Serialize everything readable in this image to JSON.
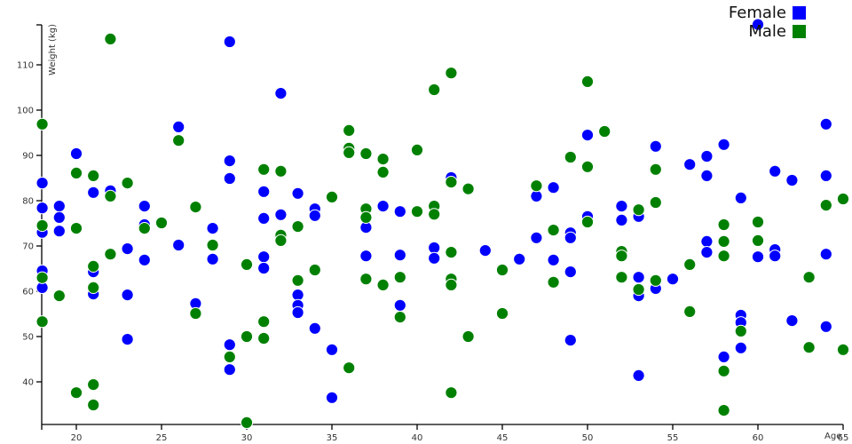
{
  "legend": {
    "items": [
      {
        "label": "Female",
        "color": "#0000ff"
      },
      {
        "label": "Male",
        "color": "#008000"
      }
    ]
  },
  "chart_data": {
    "type": "scatter",
    "title": "",
    "xlabel": "Age",
    "ylabel": "Weight (kg)",
    "xlim": [
      17.9,
      65.5
    ],
    "ylim": [
      30.5,
      118.9
    ],
    "x_ticks": [
      20,
      25,
      30,
      35,
      40,
      45,
      50,
      55,
      60,
      65
    ],
    "y_ticks": [
      40,
      50,
      60,
      70,
      80,
      90,
      100,
      110
    ],
    "grid": false,
    "legend_position": "top-right",
    "marker": {
      "radius_px": 6.6,
      "edge_color": "#ffffff"
    },
    "axis_color": "#000000",
    "series": [
      {
        "name": "Female",
        "color": "#0000ff",
        "points": [
          [
            18,
            83.9
          ],
          [
            18,
            78.4
          ],
          [
            18,
            73.0
          ],
          [
            18,
            64.5
          ],
          [
            18,
            60.8
          ],
          [
            19,
            78.8
          ],
          [
            19,
            76.3
          ],
          [
            19,
            73.3
          ],
          [
            20,
            90.4
          ],
          [
            21,
            81.8
          ],
          [
            21,
            64.3
          ],
          [
            21,
            59.4
          ],
          [
            22,
            82.2
          ],
          [
            23,
            69.4
          ],
          [
            23,
            59.2
          ],
          [
            23,
            49.4
          ],
          [
            24,
            78.8
          ],
          [
            24,
            74.7
          ],
          [
            24,
            66.9
          ],
          [
            26,
            96.3
          ],
          [
            26,
            70.2
          ],
          [
            27,
            57.3
          ],
          [
            28,
            73.9
          ],
          [
            28,
            67.1
          ],
          [
            29,
            115.1
          ],
          [
            29,
            88.8
          ],
          [
            29,
            84.9
          ],
          [
            29,
            48.2
          ],
          [
            29,
            42.7
          ],
          [
            31,
            82.0
          ],
          [
            31,
            76.1
          ],
          [
            31,
            67.6
          ],
          [
            31,
            65.1
          ],
          [
            32,
            103.7
          ],
          [
            32,
            76.9
          ],
          [
            33,
            81.6
          ],
          [
            33,
            59.2
          ],
          [
            33,
            56.9
          ],
          [
            33,
            55.3
          ],
          [
            34,
            78.2
          ],
          [
            34,
            76.7
          ],
          [
            34,
            51.8
          ],
          [
            35,
            47.1
          ],
          [
            35,
            36.5
          ],
          [
            37,
            74.1
          ],
          [
            37,
            67.8
          ],
          [
            38,
            78.8
          ],
          [
            39,
            77.6
          ],
          [
            39,
            68.0
          ],
          [
            39,
            56.9
          ],
          [
            41,
            69.6
          ],
          [
            41,
            67.3
          ],
          [
            42,
            85.1
          ],
          [
            44,
            69.0
          ],
          [
            46,
            67.1
          ],
          [
            47,
            81.0
          ],
          [
            47,
            71.8
          ],
          [
            48,
            82.9
          ],
          [
            48,
            66.9
          ],
          [
            49,
            72.9
          ],
          [
            49,
            71.8
          ],
          [
            49,
            64.3
          ],
          [
            49,
            49.2
          ],
          [
            50,
            94.5
          ],
          [
            50,
            76.5
          ],
          [
            52,
            78.8
          ],
          [
            52,
            75.7
          ],
          [
            53,
            76.5
          ],
          [
            53,
            63.1
          ],
          [
            53,
            59.0
          ],
          [
            53,
            41.4
          ],
          [
            54,
            92.0
          ],
          [
            54,
            60.6
          ],
          [
            55,
            62.7
          ],
          [
            56,
            88.0
          ],
          [
            57,
            89.8
          ],
          [
            57,
            85.5
          ],
          [
            57,
            71.0
          ],
          [
            57,
            68.6
          ],
          [
            58,
            92.4
          ],
          [
            58,
            45.5
          ],
          [
            59,
            80.6
          ],
          [
            59,
            54.7
          ],
          [
            59,
            53.1
          ],
          [
            59,
            47.5
          ],
          [
            60,
            118.9
          ],
          [
            60,
            67.6
          ],
          [
            61,
            86.5
          ],
          [
            61,
            69.2
          ],
          [
            61,
            67.8
          ],
          [
            62,
            84.5
          ],
          [
            62,
            53.5
          ],
          [
            64,
            96.9
          ],
          [
            64,
            85.5
          ],
          [
            64,
            68.2
          ],
          [
            64,
            52.2
          ]
        ]
      },
      {
        "name": "Male",
        "color": "#008000",
        "points": [
          [
            18,
            96.9
          ],
          [
            18,
            74.5
          ],
          [
            18,
            63.0
          ],
          [
            18,
            53.3
          ],
          [
            19,
            59.0
          ],
          [
            20,
            86.1
          ],
          [
            20,
            73.9
          ],
          [
            20,
            37.6
          ],
          [
            21,
            85.5
          ],
          [
            21,
            65.5
          ],
          [
            21,
            60.8
          ],
          [
            21,
            39.4
          ],
          [
            21,
            34.9
          ],
          [
            22,
            115.7
          ],
          [
            22,
            81.0
          ],
          [
            22,
            68.2
          ],
          [
            23,
            83.9
          ],
          [
            24,
            73.9
          ],
          [
            25,
            75.1
          ],
          [
            26,
            93.3
          ],
          [
            27,
            78.6
          ],
          [
            27,
            55.1
          ],
          [
            28,
            70.2
          ],
          [
            29,
            45.5
          ],
          [
            30,
            65.9
          ],
          [
            30,
            50.0
          ],
          [
            30,
            31.0
          ],
          [
            31,
            86.9
          ],
          [
            31,
            53.3
          ],
          [
            31,
            49.6
          ],
          [
            32,
            86.5
          ],
          [
            32,
            72.4
          ],
          [
            32,
            71.2
          ],
          [
            33,
            74.3
          ],
          [
            33,
            62.4
          ],
          [
            34,
            64.7
          ],
          [
            35,
            80.8
          ],
          [
            36,
            95.5
          ],
          [
            36,
            91.6
          ],
          [
            36,
            90.6
          ],
          [
            36,
            43.1
          ],
          [
            37,
            90.4
          ],
          [
            37,
            78.2
          ],
          [
            37,
            76.3
          ],
          [
            37,
            62.7
          ],
          [
            38,
            89.2
          ],
          [
            38,
            86.3
          ],
          [
            38,
            61.4
          ],
          [
            39,
            63.1
          ],
          [
            39,
            54.3
          ],
          [
            40,
            91.2
          ],
          [
            40,
            77.6
          ],
          [
            41,
            104.5
          ],
          [
            41,
            78.8
          ],
          [
            41,
            77.0
          ],
          [
            42,
            108.2
          ],
          [
            42,
            84.1
          ],
          [
            42,
            68.6
          ],
          [
            42,
            62.7
          ],
          [
            42,
            61.4
          ],
          [
            42,
            37.6
          ],
          [
            43,
            82.6
          ],
          [
            43,
            50.0
          ],
          [
            45,
            64.7
          ],
          [
            45,
            55.1
          ],
          [
            47,
            83.3
          ],
          [
            48,
            73.5
          ],
          [
            48,
            62.0
          ],
          [
            49,
            89.6
          ],
          [
            50,
            106.3
          ],
          [
            50,
            87.5
          ],
          [
            50,
            75.3
          ],
          [
            51,
            95.3
          ],
          [
            52,
            68.8
          ],
          [
            52,
            67.8
          ],
          [
            52,
            63.1
          ],
          [
            53,
            78.0
          ],
          [
            53,
            60.4
          ],
          [
            54,
            86.9
          ],
          [
            54,
            79.6
          ],
          [
            54,
            62.4
          ],
          [
            56,
            65.9
          ],
          [
            56,
            55.5
          ],
          [
            58,
            74.7
          ],
          [
            58,
            71.0
          ],
          [
            58,
            67.8
          ],
          [
            58,
            42.4
          ],
          [
            58,
            33.7
          ],
          [
            59,
            51.2
          ],
          [
            60,
            75.3
          ],
          [
            60,
            71.2
          ],
          [
            63,
            63.1
          ],
          [
            63,
            47.6
          ],
          [
            64,
            79.0
          ],
          [
            65,
            80.4
          ],
          [
            65,
            47.1
          ]
        ]
      }
    ]
  }
}
